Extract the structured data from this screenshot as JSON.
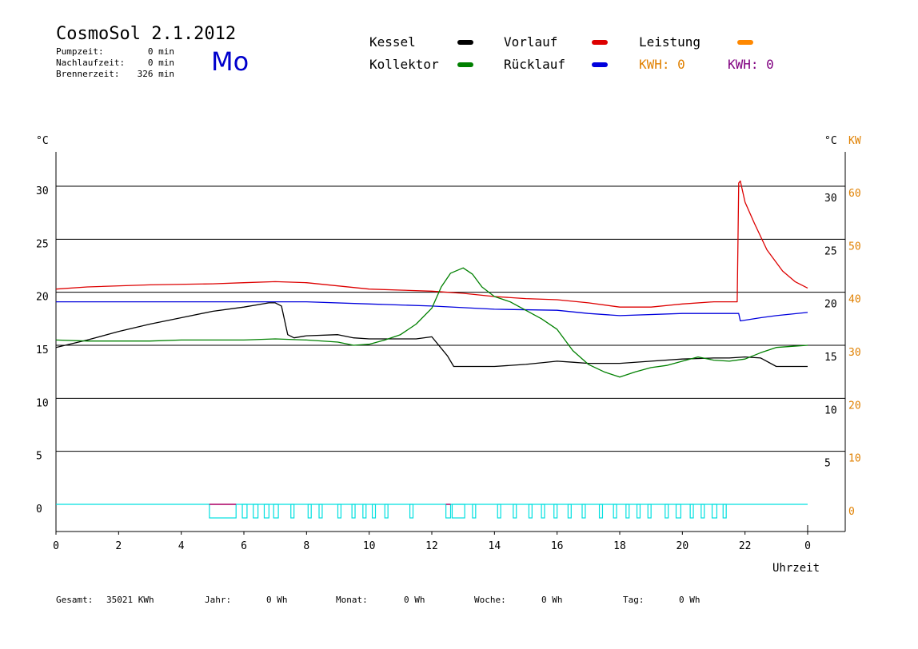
{
  "header": {
    "title": "CosmoSol 2.1.2012",
    "day": "Mo",
    "pumpzeit_label": "Pumpzeit:",
    "pumpzeit_value": "0 min",
    "nachlaufzeit_label": "Nachlaufzeit:",
    "nachlaufzeit_value": "0 min",
    "brennerzeit_label": "Brennerzeit:",
    "brennerzeit_value": "326 min"
  },
  "legend": {
    "kessel": "Kessel",
    "kollektor": "Kollektor",
    "vorlauf": "Vorlauf",
    "ruecklauf": "Rücklauf",
    "leistung": "Leistung",
    "kwh1": "KWH: 0",
    "kwh2": "KWH: 0"
  },
  "colors": {
    "kessel": "#000000",
    "kollektor": "#008000",
    "vorlauf": "#dd0000",
    "ruecklauf": "#0000dd",
    "leistung": "#ff8800",
    "kwh2": "#800080",
    "pump": "#00e0e0",
    "burner": "#cc0066",
    "kw_axis": "#e08000"
  },
  "footer": {
    "gesamt_label": "Gesamt:",
    "gesamt_value": "35021 KWh",
    "jahr_label": "Jahr:",
    "jahr_value": "0 Wh",
    "monat_label": "Monat:",
    "monat_value": "0 Wh",
    "woche_label": "Woche:",
    "woche_value": "0 Wh",
    "tag_label": "Tag:",
    "tag_value": "0 Wh"
  },
  "chart_data": {
    "type": "line",
    "xlabel": "Uhrzeit",
    "ylabel_left": "°C",
    "ylabel_right": "°C",
    "ylabel_right2": "KW",
    "x_ticks": [
      "0",
      "2",
      "4",
      "6",
      "8",
      "10",
      "12",
      "14",
      "16",
      "18",
      "20",
      "22",
      "0"
    ],
    "y_ticks_left": [
      "0",
      "5",
      "10",
      "15",
      "20",
      "25",
      "30"
    ],
    "y_ticks_right": [
      "5",
      "10",
      "15",
      "20",
      "25",
      "30"
    ],
    "y_ticks_kw": [
      "0",
      "10",
      "20",
      "30",
      "40",
      "50",
      "60"
    ],
    "xlim": [
      0,
      24
    ],
    "ylim": [
      -2.5,
      33.5
    ],
    "grid_y": [
      0,
      5,
      10,
      15,
      20,
      25,
      30
    ],
    "series": [
      {
        "name": "Vorlauf",
        "color_key": "vorlauf",
        "x": [
          0,
          1,
          3,
          5,
          6,
          7,
          8,
          9,
          10,
          11,
          12,
          13,
          14,
          15,
          16,
          17,
          18,
          19,
          20,
          21,
          21.75,
          21.8,
          21.85,
          22,
          22.3,
          22.7,
          23.2,
          23.6,
          24
        ],
        "y": [
          20.3,
          20.5,
          20.7,
          20.8,
          20.9,
          21.0,
          20.9,
          20.6,
          20.3,
          20.2,
          20.1,
          19.9,
          19.6,
          19.4,
          19.3,
          19.0,
          18.6,
          18.6,
          18.9,
          19.1,
          19.1,
          30.3,
          30.5,
          28.5,
          26.5,
          24.0,
          22.0,
          21.0,
          20.4
        ]
      },
      {
        "name": "Rücklauf",
        "color_key": "ruecklauf",
        "x": [
          0,
          2,
          4,
          6,
          8,
          10,
          12,
          14,
          16,
          17,
          18,
          20,
          21.8,
          21.85,
          22.5,
          23,
          24
        ],
        "y": [
          19.1,
          19.1,
          19.1,
          19.1,
          19.1,
          18.9,
          18.7,
          18.4,
          18.3,
          18.0,
          17.8,
          18.0,
          18.0,
          17.3,
          17.6,
          17.8,
          18.1
        ]
      },
      {
        "name": "Kessel",
        "color_key": "kessel",
        "x": [
          0,
          1,
          2,
          3,
          4,
          5,
          6,
          6.8,
          7.0,
          7.2,
          7.4,
          7.6,
          8,
          9,
          9.5,
          10,
          10.5,
          11,
          11.5,
          12,
          12.5,
          12.7,
          13,
          14,
          15,
          16,
          16.5,
          17,
          18,
          19,
          20,
          21,
          21.5,
          22,
          22.5,
          23,
          24
        ],
        "y": [
          14.8,
          15.5,
          16.3,
          17.0,
          17.6,
          18.2,
          18.6,
          19.0,
          19.0,
          18.7,
          16.0,
          15.7,
          15.9,
          16.0,
          15.7,
          15.6,
          15.6,
          15.6,
          15.6,
          15.8,
          14.0,
          13.0,
          13.0,
          13.0,
          13.2,
          13.5,
          13.4,
          13.3,
          13.3,
          13.5,
          13.7,
          13.8,
          13.8,
          13.9,
          13.8,
          13.0,
          13.0
        ]
      },
      {
        "name": "Kollektor",
        "color_key": "kollektor",
        "x": [
          0,
          1,
          2,
          3,
          4,
          5,
          6,
          7,
          8,
          9,
          9.5,
          10,
          10.5,
          11,
          11.5,
          12,
          12.3,
          12.6,
          13,
          13.3,
          13.6,
          14,
          14.5,
          15,
          15.5,
          16,
          16.5,
          17,
          17.5,
          18,
          18.5,
          19,
          19.5,
          20,
          20.5,
          21,
          21.5,
          22,
          22.5,
          23,
          23.5,
          24
        ],
        "y": [
          15.5,
          15.4,
          15.4,
          15.4,
          15.5,
          15.5,
          15.5,
          15.6,
          15.5,
          15.3,
          15.0,
          15.1,
          15.5,
          16.0,
          17.0,
          18.5,
          20.5,
          21.8,
          22.3,
          21.7,
          20.5,
          19.6,
          19.1,
          18.3,
          17.5,
          16.5,
          14.5,
          13.2,
          12.5,
          12.0,
          12.5,
          12.9,
          13.1,
          13.5,
          13.9,
          13.6,
          13.5,
          13.7,
          14.3,
          14.8,
          14.9,
          15.0
        ]
      }
    ],
    "pump_on_intervals": [
      [
        4.9,
        5.75
      ],
      [
        5.95,
        6.1
      ],
      [
        6.3,
        6.45
      ],
      [
        6.65,
        6.8
      ],
      [
        6.95,
        7.1
      ],
      [
        7.5,
        7.6
      ],
      [
        8.05,
        8.15
      ],
      [
        8.4,
        8.5
      ],
      [
        9.0,
        9.1
      ],
      [
        9.45,
        9.55
      ],
      [
        9.8,
        9.9
      ],
      [
        10.1,
        10.2
      ],
      [
        10.5,
        10.6
      ],
      [
        11.3,
        11.4
      ],
      [
        12.45,
        12.6
      ],
      [
        12.65,
        13.05
      ],
      [
        13.3,
        13.4
      ],
      [
        14.1,
        14.2
      ],
      [
        14.6,
        14.7
      ],
      [
        15.1,
        15.2
      ],
      [
        15.5,
        15.6
      ],
      [
        15.9,
        16.0
      ],
      [
        16.35,
        16.45
      ],
      [
        16.8,
        16.9
      ],
      [
        17.35,
        17.45
      ],
      [
        17.8,
        17.9
      ],
      [
        18.2,
        18.3
      ],
      [
        18.55,
        18.65
      ],
      [
        18.9,
        19.0
      ],
      [
        19.45,
        19.55
      ],
      [
        19.8,
        19.95
      ],
      [
        20.25,
        20.35
      ],
      [
        20.6,
        20.7
      ],
      [
        20.95,
        21.1
      ],
      [
        21.3,
        21.4
      ]
    ],
    "burner_on_intervals": [
      [
        4.9,
        5.75
      ],
      [
        12.45,
        12.6
      ]
    ]
  }
}
